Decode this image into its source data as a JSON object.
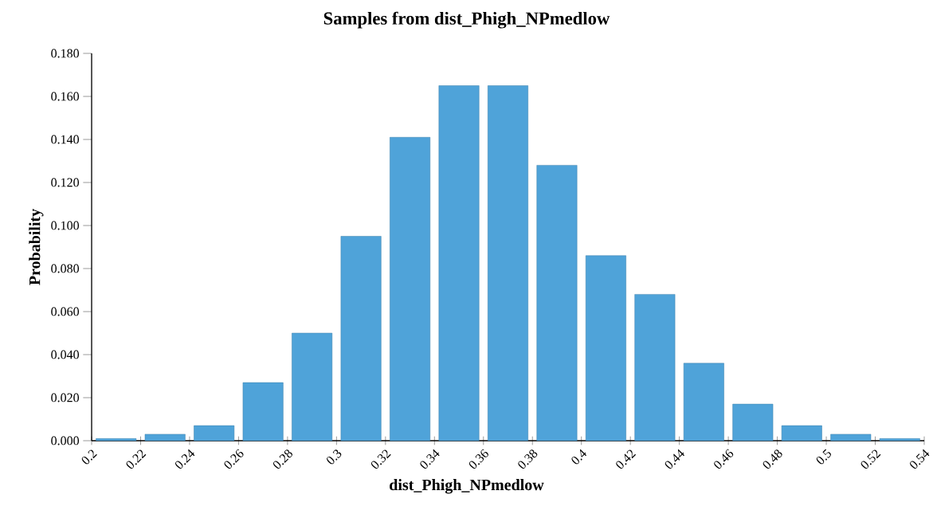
{
  "chart_data": {
    "type": "histogram",
    "title": "Samples from dist_Phigh_NPmedlow",
    "xlabel": "dist_Phigh_NPmedlow",
    "ylabel": "Probability",
    "bins": [
      0.2,
      0.22,
      0.24,
      0.26,
      0.28,
      0.3,
      0.32,
      0.34,
      0.36,
      0.38,
      0.4,
      0.42,
      0.44,
      0.46,
      0.48,
      0.5,
      0.52,
      0.54
    ],
    "values": [
      0.001,
      0.003,
      0.007,
      0.027,
      0.05,
      0.095,
      0.141,
      0.165,
      0.165,
      0.128,
      0.086,
      0.068,
      0.036,
      0.017,
      0.007,
      0.003,
      0.001
    ],
    "color": "#4fa3d9",
    "xlim": [
      0.2,
      0.54
    ],
    "xticks": [
      0.2,
      0.22,
      0.24,
      0.26,
      0.28,
      0.3,
      0.32,
      0.34,
      0.36,
      0.38,
      0.4,
      0.42,
      0.44,
      0.46,
      0.48,
      0.5,
      0.52,
      0.54
    ],
    "ylim": [
      0,
      0.18
    ],
    "yticks": [
      {
        "value": 0,
        "label": "0.000"
      },
      {
        "value": 0.02,
        "label": "0.020"
      },
      {
        "value": 0.04,
        "label": "0.040"
      },
      {
        "value": 0.06,
        "label": "0.060"
      },
      {
        "value": 0.08,
        "label": "0.080"
      },
      {
        "value": 0.1,
        "label": "0.100"
      },
      {
        "value": 0.12,
        "label": "0.120"
      },
      {
        "value": 0.14,
        "label": "0.140"
      },
      {
        "value": 0.16,
        "label": "0.160"
      },
      {
        "value": 0.18,
        "label": "0.180"
      }
    ],
    "grid": false
  }
}
